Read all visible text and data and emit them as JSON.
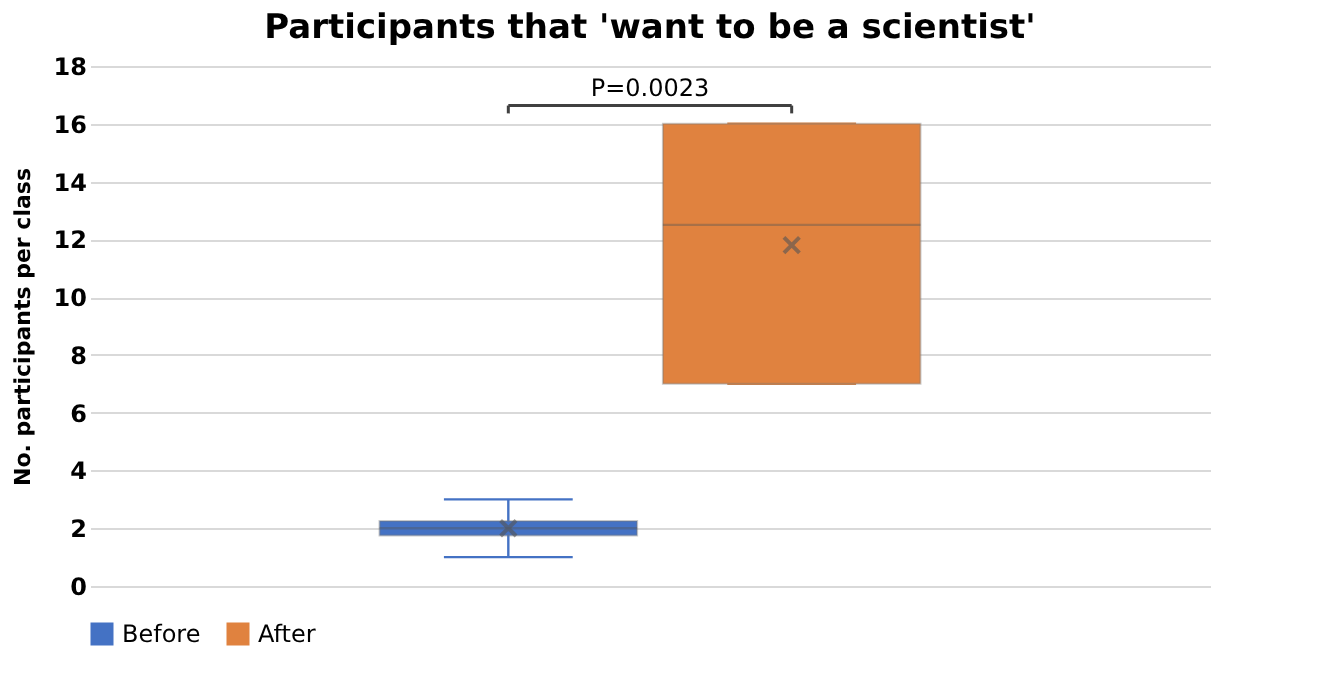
{
  "chart_data": {
    "type": "box",
    "title": "Participants that 'want to be a scientist'",
    "ylabel": "No. participants per class",
    "categories": [
      null
    ],
    "series": [
      {
        "name": "Before",
        "color": "#4472c4",
        "boxes": [
          {
            "low": 1,
            "q1": 1.75,
            "median": 2,
            "q3": 2.25,
            "high": 3,
            "mean": 2
          }
        ]
      },
      {
        "name": "After",
        "color": "#e0823f",
        "boxes": [
          {
            "low": 7,
            "q1": 7,
            "median": 12.5,
            "q3": 16,
            "high": 16,
            "mean": 11.8
          }
        ]
      }
    ],
    "ylim": [
      0,
      18
    ],
    "yticks": [
      0,
      2,
      4,
      6,
      8,
      10,
      12,
      14,
      16,
      18
    ],
    "grid": "y",
    "legend": "bottom",
    "tick_labels": "y",
    "annotations": [
      "P=0.0023"
    ]
  }
}
